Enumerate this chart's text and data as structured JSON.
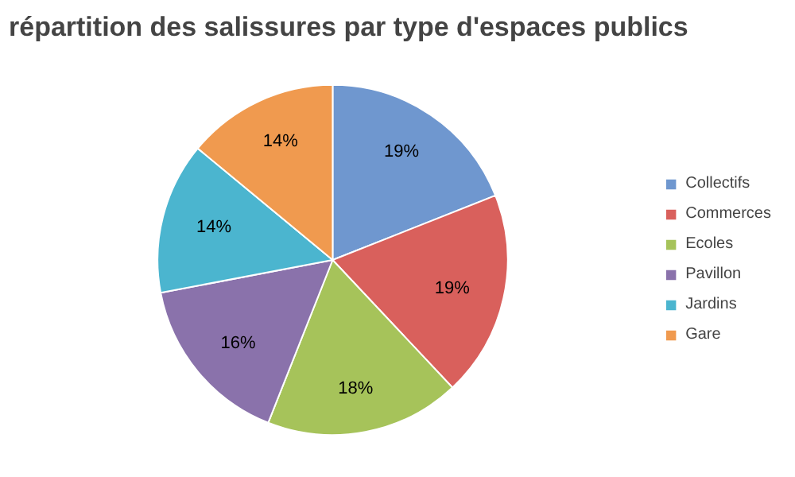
{
  "chart_data": {
    "type": "pie",
    "title": "répartition des salissures par type d'espaces publics",
    "categories": [
      "Collectifs",
      "Commerces",
      "Ecoles",
      "Pavillon",
      "Jardins",
      "Gare"
    ],
    "values": [
      19,
      19,
      18,
      16,
      14,
      14
    ],
    "colors": [
      "#6f97cf",
      "#d9605c",
      "#a6c35a",
      "#8a72ab",
      "#4bb5cf",
      "#f09a4f"
    ],
    "value_labels": [
      "19%",
      "19%",
      "18%",
      "16%",
      "14%",
      "14%"
    ],
    "legend": "right"
  }
}
